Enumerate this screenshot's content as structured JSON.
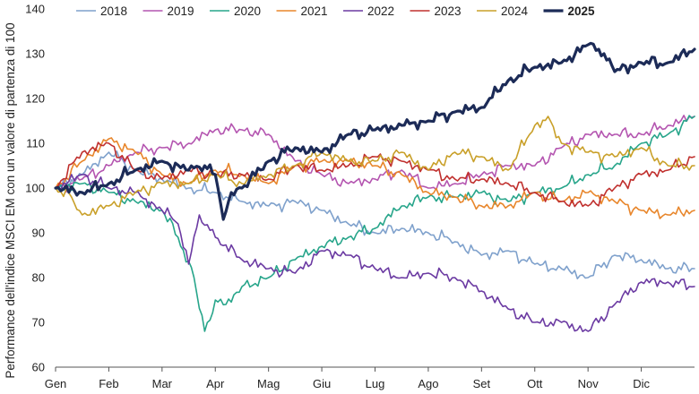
{
  "chart_data": {
    "type": "line",
    "title": "",
    "ylabel": "Performance dell'indice MSCI EM con un valore di partenza di 100",
    "xlabel": "",
    "ylim": [
      60,
      140
    ],
    "yticks": [
      60,
      70,
      80,
      90,
      100,
      110,
      120,
      130,
      140
    ],
    "categories": [
      "Gen",
      "Feb",
      "Mar",
      "Apr",
      "Mag",
      "Giu",
      "Lug",
      "Ago",
      "Set",
      "Ott",
      "Nov",
      "Dic"
    ],
    "x_unit": "month index (0 = Gen)",
    "xlim": [
      0,
      12
    ],
    "grid": false,
    "legend_position": "top",
    "series": [
      {
        "name": "2018",
        "color": "#7fa1cc",
        "width": 1.6,
        "x": [
          0,
          0.5,
          1,
          1.5,
          2,
          2.5,
          3,
          3.5,
          4,
          4.5,
          5,
          5.5,
          6,
          6.5,
          7,
          7.5,
          8,
          8.5,
          9,
          9.5,
          10,
          10.5,
          11,
          11.5,
          12
        ],
        "values": [
          100,
          103,
          108,
          104,
          102,
          100,
          99,
          97,
          96,
          97,
          95,
          92,
          90,
          91,
          90,
          88,
          85,
          86,
          83,
          82,
          80,
          85,
          84,
          82,
          82
        ]
      },
      {
        "name": "2019",
        "color": "#b455b0",
        "width": 1.6,
        "x": [
          0,
          0.5,
          1,
          1.5,
          2,
          2.5,
          3,
          3.5,
          4,
          4.5,
          5,
          5.5,
          6,
          6.5,
          7,
          7.5,
          8,
          8.5,
          9,
          9.5,
          10,
          10.5,
          11,
          11.5,
          12
        ],
        "values": [
          100,
          102,
          105,
          108,
          109,
          110,
          113,
          113,
          112,
          106,
          103,
          101,
          102,
          104,
          100,
          101,
          103,
          105,
          105,
          109,
          112,
          112,
          112,
          114,
          116
        ]
      },
      {
        "name": "2020",
        "color": "#27a58a",
        "width": 1.6,
        "x": [
          0,
          0.5,
          1,
          1.5,
          2,
          2.3,
          2.6,
          2.8,
          3,
          3.2,
          3.5,
          4,
          4.5,
          5,
          5.5,
          6,
          6.5,
          7,
          7.5,
          8,
          8.5,
          9,
          9.5,
          10,
          10.5,
          11,
          11.5,
          12
        ],
        "values": [
          100,
          101,
          99,
          97,
          95,
          89,
          80,
          68,
          75,
          74,
          78,
          80,
          84,
          87,
          89,
          91,
          96,
          98,
          98,
          99,
          97,
          99,
          100,
          103,
          105,
          110,
          112,
          116
        ]
      },
      {
        "name": "2021",
        "color": "#e8862b",
        "width": 1.6,
        "x": [
          0,
          0.5,
          1,
          1.5,
          2,
          2.5,
          3,
          3.5,
          4,
          4.5,
          5,
          5.5,
          6,
          6.5,
          7,
          7.5,
          8,
          8.5,
          9,
          9.5,
          10,
          10.5,
          11,
          11.5,
          12
        ],
        "values": [
          100,
          106,
          111,
          108,
          103,
          101,
          104,
          103,
          101,
          105,
          106,
          106,
          105,
          103,
          99,
          98,
          96,
          96,
          99,
          97,
          99,
          97,
          95,
          94,
          95
        ]
      },
      {
        "name": "2022",
        "color": "#6b3aa2",
        "width": 1.6,
        "x": [
          0,
          0.5,
          1,
          1.5,
          2,
          2.3,
          2.5,
          2.7,
          3,
          3.5,
          4,
          4.5,
          5,
          5.5,
          6,
          6.5,
          7,
          7.5,
          8,
          8.5,
          9,
          9.5,
          10,
          10.5,
          11,
          11.5,
          12
        ],
        "values": [
          100,
          103,
          100,
          99,
          95,
          92,
          83,
          94,
          89,
          84,
          82,
          81,
          86,
          85,
          82,
          80,
          81,
          80,
          77,
          73,
          70,
          70,
          68,
          74,
          79,
          79,
          78
        ]
      },
      {
        "name": "2023",
        "color": "#c0302e",
        "width": 1.6,
        "x": [
          0,
          0.5,
          1,
          1.5,
          2,
          2.5,
          3,
          3.5,
          4,
          4.5,
          5,
          5.5,
          6,
          6.5,
          7,
          7.5,
          8,
          8.5,
          9,
          9.5,
          10,
          10.5,
          11,
          11.5,
          12
        ],
        "values": [
          100,
          108,
          110,
          104,
          102,
          104,
          103,
          103,
          102,
          105,
          104,
          105,
          107,
          106,
          104,
          102,
          102,
          101,
          99,
          97,
          96,
          100,
          103,
          104,
          107
        ]
      },
      {
        "name": "2024",
        "color": "#c9a029",
        "width": 1.6,
        "x": [
          0,
          0.3,
          0.5,
          1,
          1.5,
          2,
          2.5,
          3,
          3.5,
          4,
          4.5,
          5,
          5.5,
          6,
          6.5,
          7,
          7.5,
          8,
          8.5,
          9,
          9.25,
          9.5,
          10,
          10.5,
          11,
          11.5,
          12
        ],
        "values": [
          100,
          98,
          94,
          96,
          99,
          101,
          101,
          103,
          101,
          103,
          105,
          108,
          106,
          106,
          108,
          104,
          108,
          107,
          104,
          114,
          116,
          110,
          108,
          107,
          109,
          105,
          105
        ]
      },
      {
        "name": "2025",
        "color": "#1c2b57",
        "width": 3.2,
        "x": [
          0,
          0.5,
          1,
          1.5,
          2,
          2.5,
          2.8,
          3,
          3.15,
          3.3,
          3.5,
          4,
          4.5,
          5,
          5.5,
          6,
          6.5,
          7,
          7.5,
          8,
          8.5,
          9,
          9.5,
          10,
          10.3,
          10.5,
          11,
          11.5,
          12
        ],
        "values": [
          100,
          99,
          101,
          104,
          106,
          104,
          105,
          103,
          93,
          99,
          100,
          106,
          109,
          108,
          112,
          113,
          114,
          115,
          117,
          118,
          124,
          127,
          128,
          132,
          130,
          126,
          128,
          128,
          131
        ]
      }
    ]
  }
}
